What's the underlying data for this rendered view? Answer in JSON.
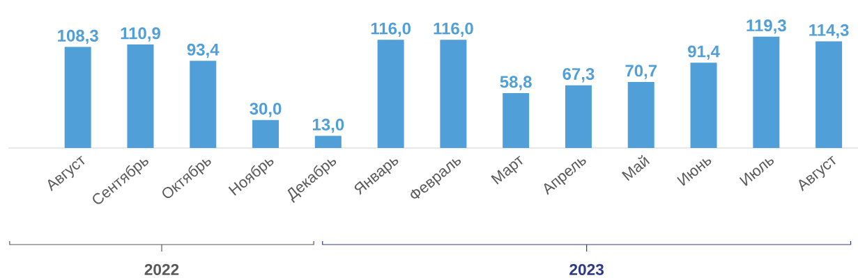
{
  "chart_data": {
    "type": "bar",
    "categories": [
      "Август",
      "Сентябрь",
      "Октябрь",
      "Ноябрь",
      "Декабрь",
      "Январь",
      "Февраль",
      "Март",
      "Апрель",
      "Май",
      "Июнь",
      "Июль",
      "Август"
    ],
    "values": [
      108.3,
      110.9,
      93.4,
      30.0,
      13.0,
      116.0,
      116.0,
      58.8,
      67.3,
      70.7,
      91.4,
      119.3,
      114.3
    ],
    "value_labels": [
      "108,3",
      "110,9",
      "93,4",
      "30,0",
      "13,0",
      "116,0",
      "116,0",
      "58,8",
      "67,3",
      "70,7",
      "91,4",
      "119,3",
      "114,3"
    ],
    "color": "#519fd9",
    "annotations": [
      "2022",
      "2023"
    ]
  }
}
